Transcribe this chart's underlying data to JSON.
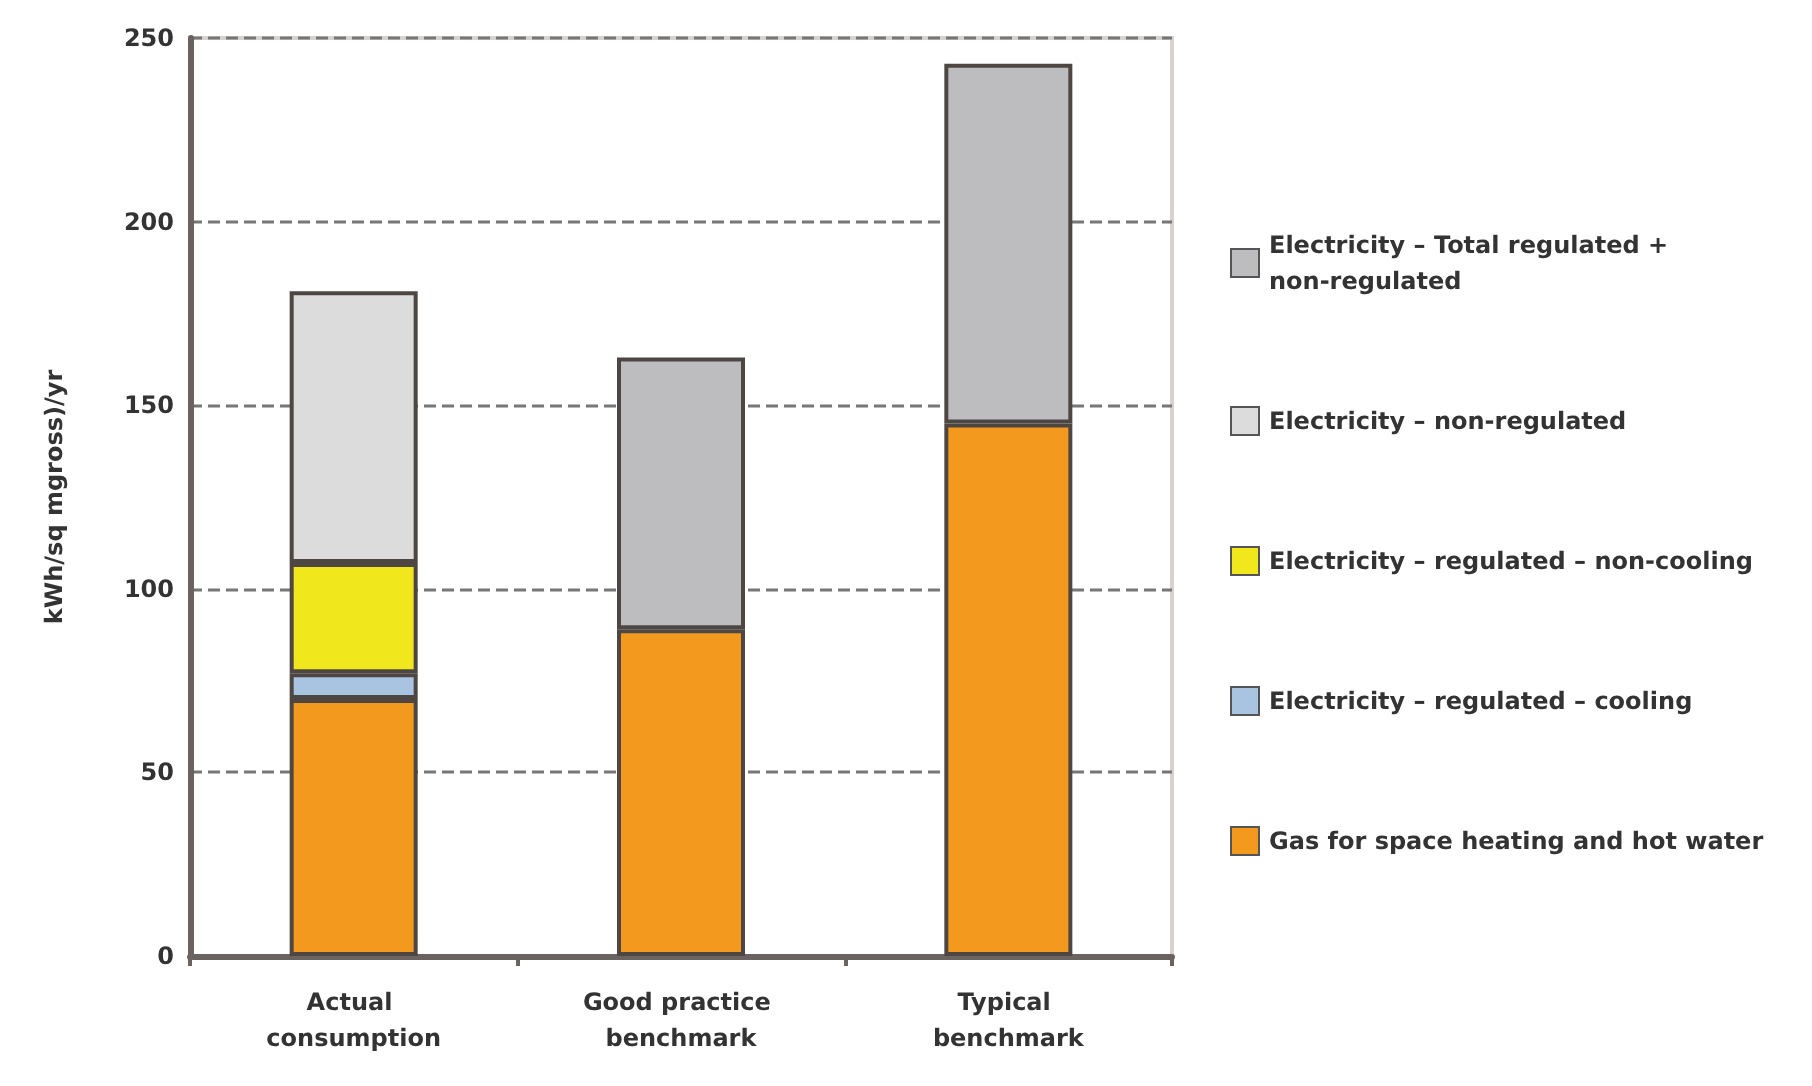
{
  "chart_data": {
    "type": "bar",
    "stacked": true,
    "ylabel": "kWh/sq mgross)/yr",
    "categories": [
      "Actual consumption",
      "Good practice benchmark",
      "Typical benchmark"
    ],
    "series": [
      {
        "name": "Gas for space heating and hot water",
        "color": "#f39a1e",
        "values": [
          70,
          89,
          145
        ]
      },
      {
        "name": "Electricity – regulated – cooling",
        "color": "#a9c4e0",
        "values": [
          7,
          null,
          null
        ]
      },
      {
        "name": "Electricity – regulated – non-cooling",
        "color": "#f0e81c",
        "values": [
          30,
          null,
          null
        ]
      },
      {
        "name": "Electricity – non-regulated",
        "color": "#dcdcdc",
        "values": [
          74,
          null,
          null
        ]
      },
      {
        "name": "Electricity – Total regulated + non-regulated",
        "color": "#bdbdbf",
        "values": [
          null,
          74,
          98
        ]
      }
    ],
    "ylim": [
      0,
      250
    ],
    "yticks": [
      0,
      50,
      100,
      150,
      200,
      250
    ],
    "grid": "y",
    "legend": "right"
  }
}
